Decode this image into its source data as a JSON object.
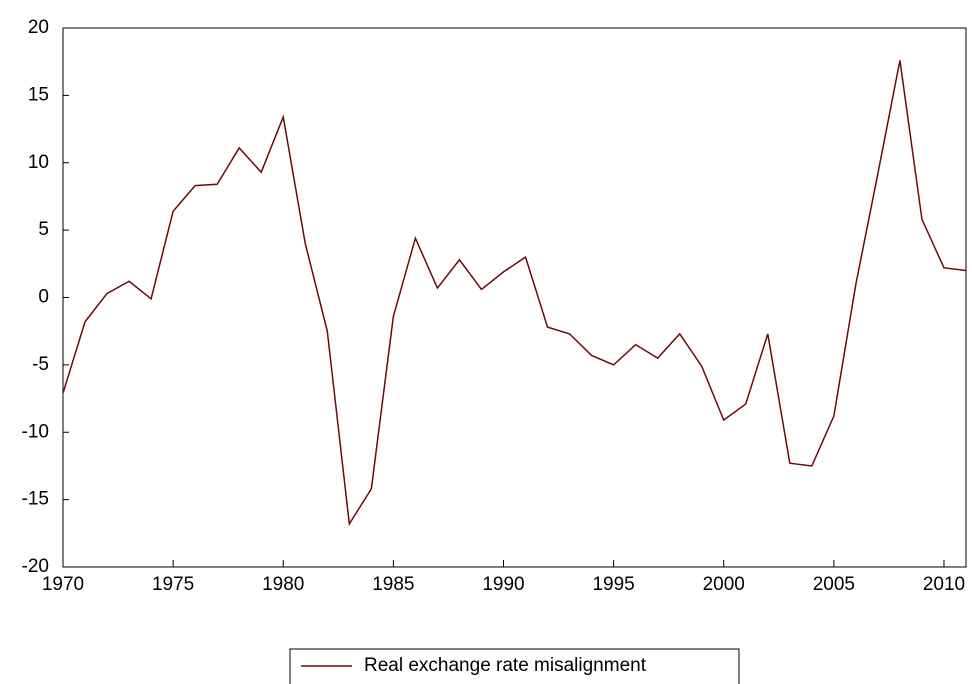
{
  "chart_data": {
    "type": "line",
    "x": [
      1970,
      1971,
      1972,
      1973,
      1974,
      1975,
      1976,
      1977,
      1978,
      1979,
      1980,
      1981,
      1982,
      1983,
      1984,
      1985,
      1986,
      1987,
      1988,
      1989,
      1990,
      1991,
      1992,
      1993,
      1994,
      1995,
      1996,
      1997,
      1998,
      1999,
      2000,
      2001,
      2002,
      2003,
      2004,
      2005,
      2006,
      2007,
      2008,
      2009,
      2010,
      2011
    ],
    "series": [
      {
        "name": "Real exchange rate misalignment",
        "color": "#6b0a0a",
        "values": [
          -7.1,
          -1.8,
          0.3,
          1.2,
          -0.1,
          6.4,
          8.3,
          8.4,
          11.1,
          9.3,
          13.4,
          4.0,
          -2.5,
          -16.8,
          -14.2,
          -1.4,
          4.4,
          0.7,
          2.8,
          0.6,
          1.9,
          3.0,
          -2.2,
          -2.7,
          -4.3,
          -5.0,
          -3.5,
          -4.5,
          -2.7,
          -5.1,
          -9.1,
          -7.9,
          -2.7,
          -12.3,
          -12.5,
          -8.8,
          1.0,
          9.2,
          17.6,
          5.8,
          2.2,
          2.0
        ]
      }
    ],
    "xlim": [
      1970,
      2011
    ],
    "xticks": [
      1970,
      1975,
      1980,
      1985,
      1990,
      1995,
      2000,
      2005,
      2010
    ],
    "ylim": [
      -20,
      20
    ],
    "yticks": [
      -20,
      -15,
      -10,
      -5,
      0,
      5,
      10,
      15,
      20
    ],
    "grid": false,
    "legend": "bottom"
  }
}
